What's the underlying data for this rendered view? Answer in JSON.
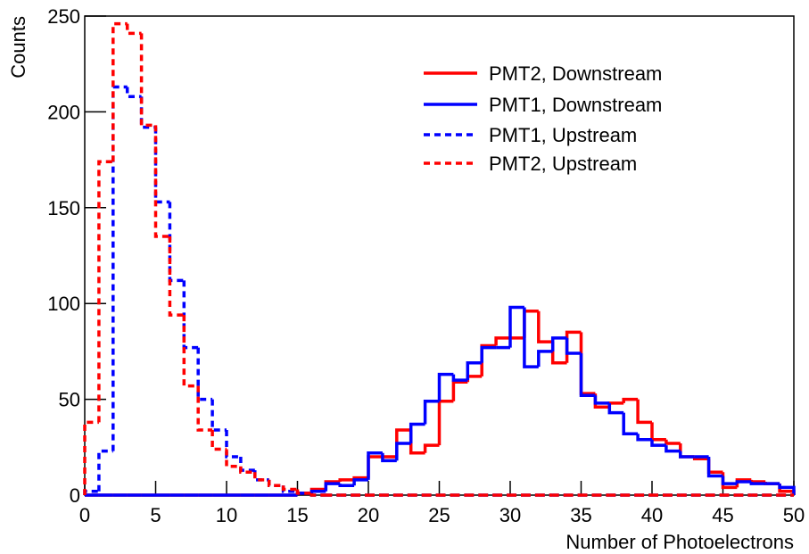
{
  "chart_data": {
    "type": "histogram",
    "xlabel": "Number of Photoelectrons",
    "ylabel": "Counts",
    "bins": [
      0,
      1,
      2,
      3,
      4,
      5,
      6,
      7,
      8,
      9,
      10,
      11,
      12,
      13,
      14,
      15,
      16,
      17,
      18,
      19,
      20,
      21,
      22,
      23,
      24,
      25,
      26,
      27,
      28,
      29,
      30,
      31,
      32,
      33,
      34,
      35,
      36,
      37,
      38,
      39,
      40,
      41,
      42,
      43,
      44,
      45,
      46,
      47,
      48,
      49,
      50
    ],
    "series": [
      {
        "name": "PMT2, Downstream",
        "color": "#ff0000",
        "dashed": false,
        "values": [
          0,
          0,
          0,
          0,
          0,
          0,
          0,
          0,
          0,
          0,
          0,
          0,
          0,
          0,
          0,
          1,
          3,
          7,
          8,
          9,
          20,
          20,
          34,
          22,
          26,
          49,
          59,
          62,
          78,
          82,
          82,
          96,
          80,
          69,
          85,
          53,
          46,
          48,
          50,
          38,
          29,
          27,
          20,
          19,
          12,
          4,
          8,
          7,
          6,
          2
        ]
      },
      {
        "name": "PMT1, Downstream",
        "color": "#0000ff",
        "dashed": false,
        "values": [
          0,
          0,
          0,
          0,
          0,
          0,
          0,
          0,
          0,
          0,
          0,
          0,
          0,
          0,
          0,
          1,
          2,
          6,
          5,
          8,
          22,
          18,
          27,
          37,
          49,
          63,
          60,
          69,
          77,
          77,
          98,
          67,
          75,
          82,
          74,
          52,
          48,
          43,
          32,
          29,
          26,
          23,
          20,
          20,
          10,
          6,
          7,
          6,
          6,
          4
        ]
      },
      {
        "name": "PMT1, Upstream",
        "color": "#0000ff",
        "dashed": true,
        "values": [
          2,
          23,
          213,
          208,
          192,
          153,
          112,
          77,
          50,
          34,
          20,
          13,
          8,
          5,
          2,
          1,
          0,
          0,
          0,
          0,
          0,
          0,
          0,
          0,
          0,
          0,
          0,
          0,
          0,
          0,
          0,
          0,
          0,
          0,
          0,
          0,
          0,
          0,
          0,
          0,
          0,
          0,
          0,
          0,
          0,
          0,
          0,
          0,
          0,
          0
        ]
      },
      {
        "name": "PMT2, Upstream",
        "color": "#ff0000",
        "dashed": true,
        "values": [
          38,
          174,
          246,
          241,
          193,
          135,
          94,
          57,
          34,
          24,
          15,
          12,
          8,
          5,
          3,
          1,
          0,
          0,
          0,
          0,
          0,
          0,
          0,
          0,
          0,
          0,
          0,
          0,
          0,
          0,
          0,
          0,
          0,
          0,
          0,
          0,
          0,
          0,
          0,
          0,
          0,
          0,
          0,
          0,
          0,
          0,
          0,
          0,
          0,
          0
        ]
      }
    ],
    "xlim": [
      0,
      50
    ],
    "xticks": [
      0,
      5,
      10,
      15,
      20,
      25,
      30,
      35,
      40,
      45,
      50
    ],
    "ylim": [
      0,
      250
    ],
    "yticks": [
      0,
      50,
      100,
      150,
      200,
      250
    ],
    "legend": "upper right"
  }
}
